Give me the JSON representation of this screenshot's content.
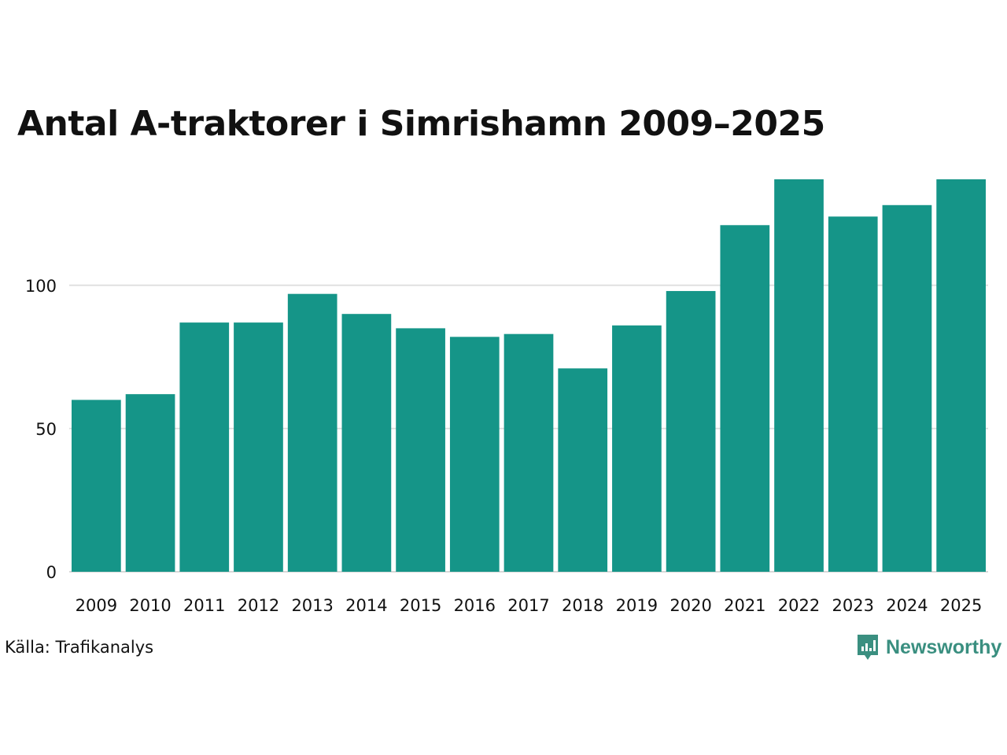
{
  "chart_data": {
    "type": "bar",
    "title": "Antal A-traktorer i Simrishamn 2009–2025",
    "categories": [
      "2009",
      "2010",
      "2011",
      "2012",
      "2013",
      "2014",
      "2015",
      "2016",
      "2017",
      "2018",
      "2019",
      "2020",
      "2021",
      "2022",
      "2023",
      "2024",
      "2025"
    ],
    "values": [
      60,
      62,
      87,
      87,
      97,
      90,
      85,
      82,
      83,
      71,
      86,
      98,
      121,
      137,
      124,
      128,
      137
    ],
    "yticks": [
      0,
      50,
      100
    ],
    "ylim": [
      0,
      137
    ],
    "xlabel": "",
    "ylabel": "",
    "grid": true,
    "bar_color": "#159588",
    "grid_color": "#e0e0e0"
  },
  "source": "Källa: Trafikanalys",
  "brand": {
    "name": "Newsworthy",
    "color": "#3a8f80",
    "icon": "newsworthy-logo-icon"
  }
}
